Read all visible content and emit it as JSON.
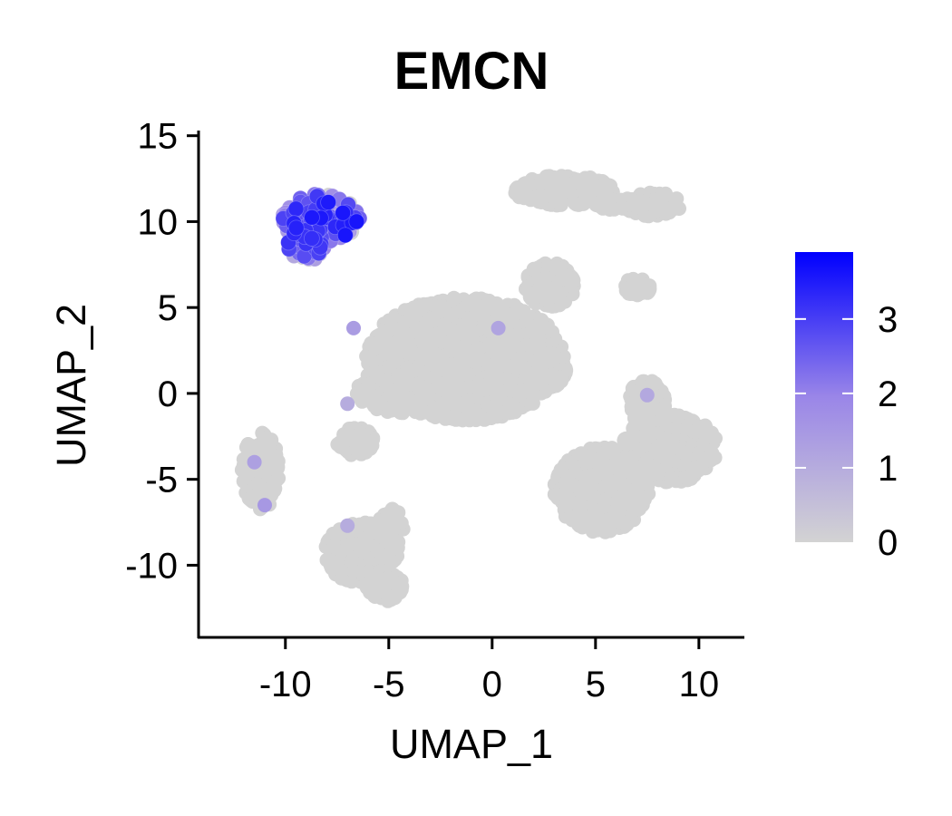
{
  "chart_data": {
    "type": "scatter",
    "title": "EMCN",
    "xlabel": "UMAP_1",
    "ylabel": "UMAP_2",
    "xlim": [
      -14.2,
      12.2
    ],
    "ylim": [
      -14.2,
      15.3
    ],
    "x_ticks": [
      -10,
      -5,
      0,
      5,
      10
    ],
    "y_ticks": [
      15,
      10,
      5,
      0,
      -5,
      -10
    ],
    "x_tick_labels": [
      "-10",
      "-5",
      "0",
      "5",
      "10"
    ],
    "y_tick_labels": [
      "15",
      "10",
      "5",
      "0",
      "-5",
      "-10"
    ],
    "grid": false,
    "legend": {
      "type": "colorbar",
      "position": "right",
      "range": [
        0,
        3.9
      ],
      "ticks": [
        0,
        1,
        2,
        3
      ],
      "tick_labels": [
        "0",
        "1",
        "2",
        "3"
      ],
      "low_color": "#d3d3d3",
      "high_color": "#0000ff"
    },
    "base_color": "#d3d3d3",
    "clusters": [
      {
        "shape": "blob",
        "cx": -1.3,
        "cy": 2.0,
        "rx": 4.8,
        "ry": 3.6,
        "expr": 0
      },
      {
        "shape": "blob",
        "cx": 0.8,
        "cy": 1.3,
        "rx": 2.8,
        "ry": 1.6,
        "expr": 0
      },
      {
        "shape": "blob",
        "cx": -4.2,
        "cy": 0.2,
        "rx": 2.4,
        "ry": 1.4,
        "expr": 0
      },
      {
        "shape": "blob",
        "cx": 2.8,
        "cy": 6.3,
        "rx": 1.2,
        "ry": 1.3,
        "expr": 0
      },
      {
        "shape": "blob",
        "cx": -6.6,
        "cy": -2.8,
        "rx": 0.9,
        "ry": 0.8,
        "expr": 0
      },
      {
        "shape": "blob",
        "cx": 3.5,
        "cy": 11.8,
        "rx": 2.4,
        "ry": 0.9,
        "expr": 0
      },
      {
        "shape": "blob",
        "cx": 7.8,
        "cy": 11.0,
        "rx": 1.4,
        "ry": 0.7,
        "expr": 0
      },
      {
        "shape": "blob",
        "cx": 6.2,
        "cy": 11.0,
        "rx": 1.2,
        "ry": 0.35,
        "expr": 0
      },
      {
        "shape": "blob",
        "cx": 7.0,
        "cy": 6.2,
        "rx": 0.7,
        "ry": 0.5,
        "expr": 0
      },
      {
        "shape": "blob",
        "cx": 8.6,
        "cy": -3.2,
        "rx": 2.3,
        "ry": 2.0,
        "expr": 0
      },
      {
        "shape": "blob",
        "cx": 5.3,
        "cy": -5.6,
        "rx": 2.3,
        "ry": 2.5,
        "expr": 0
      },
      {
        "shape": "blob",
        "cx": 7.5,
        "cy": -0.5,
        "rx": 0.9,
        "ry": 1.3,
        "expr": 0
      },
      {
        "shape": "blob",
        "cx": -11.2,
        "cy": -4.5,
        "rx": 0.9,
        "ry": 2.3,
        "expr": 0
      },
      {
        "shape": "blob",
        "cx": -6.3,
        "cy": -9.3,
        "rx": 1.8,
        "ry": 1.8,
        "expr": 0
      },
      {
        "shape": "blob",
        "cx": -4.9,
        "cy": -7.8,
        "rx": 0.6,
        "ry": 1.1,
        "expr": 0
      },
      {
        "shape": "blob",
        "cx": -5.2,
        "cy": -11.2,
        "rx": 0.9,
        "ry": 0.9,
        "expr": 0
      },
      {
        "shape": "blob",
        "cx": -8.3,
        "cy": 10.2,
        "rx": 1.9,
        "ry": 1.4,
        "expr": 2.2
      },
      {
        "shape": "blob",
        "cx": -9.0,
        "cy": 8.6,
        "rx": 0.9,
        "ry": 0.9,
        "expr": 1.8
      }
    ]
  }
}
